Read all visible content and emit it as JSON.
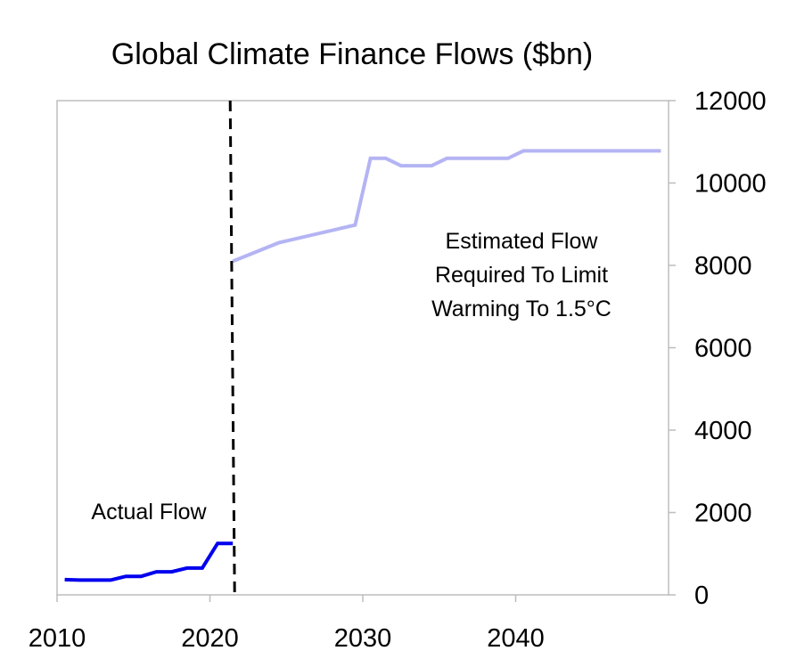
{
  "chart_data": {
    "type": "line",
    "title": "Global Climate Finance Flows ($bn)",
    "xlabel": "",
    "ylabel": "",
    "xlim": [
      2010,
      2050
    ],
    "ylim": [
      0,
      12000
    ],
    "x_ticks": [
      "2010",
      "2020",
      "2030",
      "2040"
    ],
    "y_ticks": [
      "0",
      "2000",
      "4000",
      "6000",
      "8000",
      "10000",
      "12000"
    ],
    "y_axis_side": "right",
    "grid": false,
    "series": [
      {
        "name": "Actual Flow",
        "color": "#0000ee",
        "x": [
          2010.5,
          2011.5,
          2012.5,
          2013.5,
          2014.5,
          2015.5,
          2016.5,
          2017.5,
          2018.5,
          2019.5,
          2020.5,
          2021.5
        ],
        "y": [
          370,
          360,
          360,
          360,
          450,
          450,
          560,
          560,
          650,
          650,
          1250,
          1250
        ]
      },
      {
        "name": "Estimated Flow Required To Limit Warming To 1.5°C",
        "color": "#b4b4f4",
        "x": [
          2021.5,
          2024.5,
          2029.5,
          2030.5,
          2031.5,
          2032.5,
          2034.5,
          2035.5,
          2039.5,
          2040.5,
          2049.5
        ],
        "y": [
          8100,
          8550,
          8980,
          10600,
          10600,
          10420,
          10420,
          10600,
          10600,
          10780,
          10780
        ]
      }
    ],
    "vline": {
      "x": 2021.5,
      "style": "dashed",
      "color": "#000000"
    },
    "annotations": [
      {
        "id": "actual",
        "lines": [
          "Actual Flow"
        ]
      },
      {
        "id": "estimated",
        "lines": [
          "Estimated Flow",
          "Required To Limit",
          "Warming To 1.5°C"
        ]
      }
    ]
  }
}
